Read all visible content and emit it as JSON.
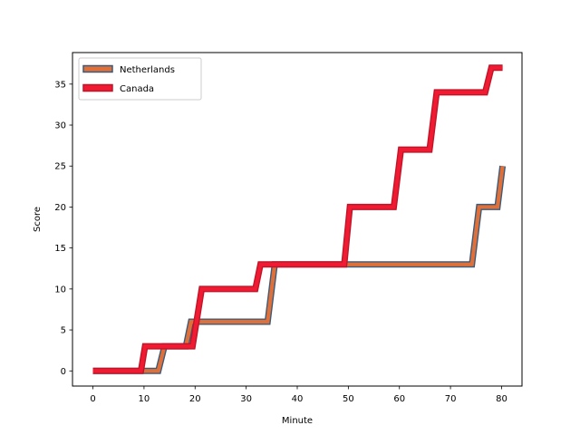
{
  "chart_data": {
    "type": "line",
    "title": "",
    "xlabel": "Minute",
    "ylabel": "Score",
    "xlim": [
      -4,
      84
    ],
    "ylim": [
      -1.85,
      38.85
    ],
    "xticks": [
      0,
      10,
      20,
      30,
      40,
      50,
      60,
      70,
      80
    ],
    "yticks": [
      0,
      5,
      10,
      15,
      20,
      25,
      30,
      35
    ],
    "grid": false,
    "legend_position": "upper-left",
    "series": [
      {
        "name": "Netherlands",
        "color": "#e0703a",
        "edge_color": "#3b5b7a",
        "x": [
          0,
          12.8,
          14,
          18.2,
          19.2,
          34.2,
          35.6,
          74.2,
          75.6,
          79.2,
          80.2
        ],
        "y": [
          0,
          0,
          3,
          3,
          6,
          6,
          13,
          13,
          20,
          20,
          25
        ]
      },
      {
        "name": "Canada",
        "color": "#f01a32",
        "edge_color": "#c01528",
        "x": [
          0,
          9.4,
          10.2,
          19.5,
          21.3,
          31.8,
          32.8,
          49.2,
          50.3,
          58.9,
          60.3,
          65.9,
          67.3,
          76.8,
          78,
          80.2
        ],
        "y": [
          0,
          0,
          3,
          3,
          10,
          10,
          13,
          13,
          20,
          20,
          27,
          27,
          34,
          34,
          37,
          37
        ]
      }
    ]
  }
}
